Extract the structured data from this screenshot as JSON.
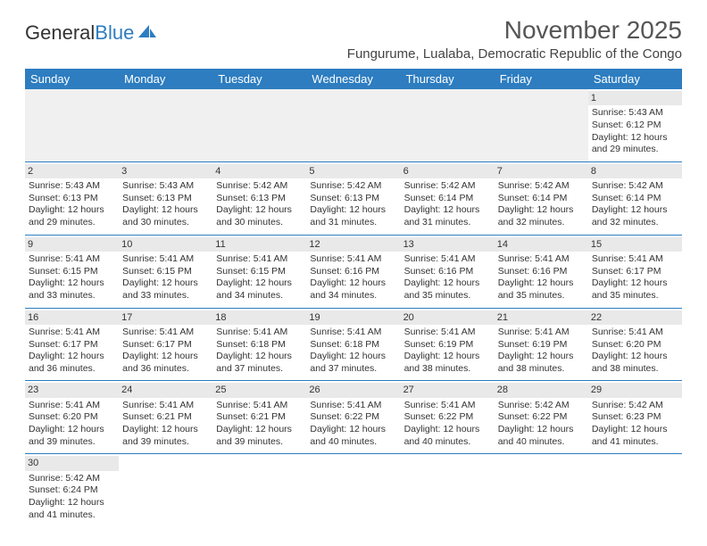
{
  "logo": {
    "text1": "General",
    "text2": "Blue"
  },
  "title": "November 2025",
  "location": "Fungurume, Lualaba, Democratic Republic of the Congo",
  "dayHeaders": [
    "Sunday",
    "Monday",
    "Tuesday",
    "Wednesday",
    "Thursday",
    "Friday",
    "Saturday"
  ],
  "header_bg": "#2d7dc0",
  "weeks": [
    [
      null,
      null,
      null,
      null,
      null,
      null,
      {
        "n": "1",
        "sr": "Sunrise: 5:43 AM",
        "ss": "Sunset: 6:12 PM",
        "d1": "Daylight: 12 hours",
        "d2": "and 29 minutes."
      }
    ],
    [
      {
        "n": "2",
        "sr": "Sunrise: 5:43 AM",
        "ss": "Sunset: 6:13 PM",
        "d1": "Daylight: 12 hours",
        "d2": "and 29 minutes."
      },
      {
        "n": "3",
        "sr": "Sunrise: 5:43 AM",
        "ss": "Sunset: 6:13 PM",
        "d1": "Daylight: 12 hours",
        "d2": "and 30 minutes."
      },
      {
        "n": "4",
        "sr": "Sunrise: 5:42 AM",
        "ss": "Sunset: 6:13 PM",
        "d1": "Daylight: 12 hours",
        "d2": "and 30 minutes."
      },
      {
        "n": "5",
        "sr": "Sunrise: 5:42 AM",
        "ss": "Sunset: 6:13 PM",
        "d1": "Daylight: 12 hours",
        "d2": "and 31 minutes."
      },
      {
        "n": "6",
        "sr": "Sunrise: 5:42 AM",
        "ss": "Sunset: 6:14 PM",
        "d1": "Daylight: 12 hours",
        "d2": "and 31 minutes."
      },
      {
        "n": "7",
        "sr": "Sunrise: 5:42 AM",
        "ss": "Sunset: 6:14 PM",
        "d1": "Daylight: 12 hours",
        "d2": "and 32 minutes."
      },
      {
        "n": "8",
        "sr": "Sunrise: 5:42 AM",
        "ss": "Sunset: 6:14 PM",
        "d1": "Daylight: 12 hours",
        "d2": "and 32 minutes."
      }
    ],
    [
      {
        "n": "9",
        "sr": "Sunrise: 5:41 AM",
        "ss": "Sunset: 6:15 PM",
        "d1": "Daylight: 12 hours",
        "d2": "and 33 minutes."
      },
      {
        "n": "10",
        "sr": "Sunrise: 5:41 AM",
        "ss": "Sunset: 6:15 PM",
        "d1": "Daylight: 12 hours",
        "d2": "and 33 minutes."
      },
      {
        "n": "11",
        "sr": "Sunrise: 5:41 AM",
        "ss": "Sunset: 6:15 PM",
        "d1": "Daylight: 12 hours",
        "d2": "and 34 minutes."
      },
      {
        "n": "12",
        "sr": "Sunrise: 5:41 AM",
        "ss": "Sunset: 6:16 PM",
        "d1": "Daylight: 12 hours",
        "d2": "and 34 minutes."
      },
      {
        "n": "13",
        "sr": "Sunrise: 5:41 AM",
        "ss": "Sunset: 6:16 PM",
        "d1": "Daylight: 12 hours",
        "d2": "and 35 minutes."
      },
      {
        "n": "14",
        "sr": "Sunrise: 5:41 AM",
        "ss": "Sunset: 6:16 PM",
        "d1": "Daylight: 12 hours",
        "d2": "and 35 minutes."
      },
      {
        "n": "15",
        "sr": "Sunrise: 5:41 AM",
        "ss": "Sunset: 6:17 PM",
        "d1": "Daylight: 12 hours",
        "d2": "and 35 minutes."
      }
    ],
    [
      {
        "n": "16",
        "sr": "Sunrise: 5:41 AM",
        "ss": "Sunset: 6:17 PM",
        "d1": "Daylight: 12 hours",
        "d2": "and 36 minutes."
      },
      {
        "n": "17",
        "sr": "Sunrise: 5:41 AM",
        "ss": "Sunset: 6:17 PM",
        "d1": "Daylight: 12 hours",
        "d2": "and 36 minutes."
      },
      {
        "n": "18",
        "sr": "Sunrise: 5:41 AM",
        "ss": "Sunset: 6:18 PM",
        "d1": "Daylight: 12 hours",
        "d2": "and 37 minutes."
      },
      {
        "n": "19",
        "sr": "Sunrise: 5:41 AM",
        "ss": "Sunset: 6:18 PM",
        "d1": "Daylight: 12 hours",
        "d2": "and 37 minutes."
      },
      {
        "n": "20",
        "sr": "Sunrise: 5:41 AM",
        "ss": "Sunset: 6:19 PM",
        "d1": "Daylight: 12 hours",
        "d2": "and 38 minutes."
      },
      {
        "n": "21",
        "sr": "Sunrise: 5:41 AM",
        "ss": "Sunset: 6:19 PM",
        "d1": "Daylight: 12 hours",
        "d2": "and 38 minutes."
      },
      {
        "n": "22",
        "sr": "Sunrise: 5:41 AM",
        "ss": "Sunset: 6:20 PM",
        "d1": "Daylight: 12 hours",
        "d2": "and 38 minutes."
      }
    ],
    [
      {
        "n": "23",
        "sr": "Sunrise: 5:41 AM",
        "ss": "Sunset: 6:20 PM",
        "d1": "Daylight: 12 hours",
        "d2": "and 39 minutes."
      },
      {
        "n": "24",
        "sr": "Sunrise: 5:41 AM",
        "ss": "Sunset: 6:21 PM",
        "d1": "Daylight: 12 hours",
        "d2": "and 39 minutes."
      },
      {
        "n": "25",
        "sr": "Sunrise: 5:41 AM",
        "ss": "Sunset: 6:21 PM",
        "d1": "Daylight: 12 hours",
        "d2": "and 39 minutes."
      },
      {
        "n": "26",
        "sr": "Sunrise: 5:41 AM",
        "ss": "Sunset: 6:22 PM",
        "d1": "Daylight: 12 hours",
        "d2": "and 40 minutes."
      },
      {
        "n": "27",
        "sr": "Sunrise: 5:41 AM",
        "ss": "Sunset: 6:22 PM",
        "d1": "Daylight: 12 hours",
        "d2": "and 40 minutes."
      },
      {
        "n": "28",
        "sr": "Sunrise: 5:42 AM",
        "ss": "Sunset: 6:22 PM",
        "d1": "Daylight: 12 hours",
        "d2": "and 40 minutes."
      },
      {
        "n": "29",
        "sr": "Sunrise: 5:42 AM",
        "ss": "Sunset: 6:23 PM",
        "d1": "Daylight: 12 hours",
        "d2": "and 41 minutes."
      }
    ],
    [
      {
        "n": "30",
        "sr": "Sunrise: 5:42 AM",
        "ss": "Sunset: 6:24 PM",
        "d1": "Daylight: 12 hours",
        "d2": "and 41 minutes."
      },
      null,
      null,
      null,
      null,
      null,
      null
    ]
  ]
}
